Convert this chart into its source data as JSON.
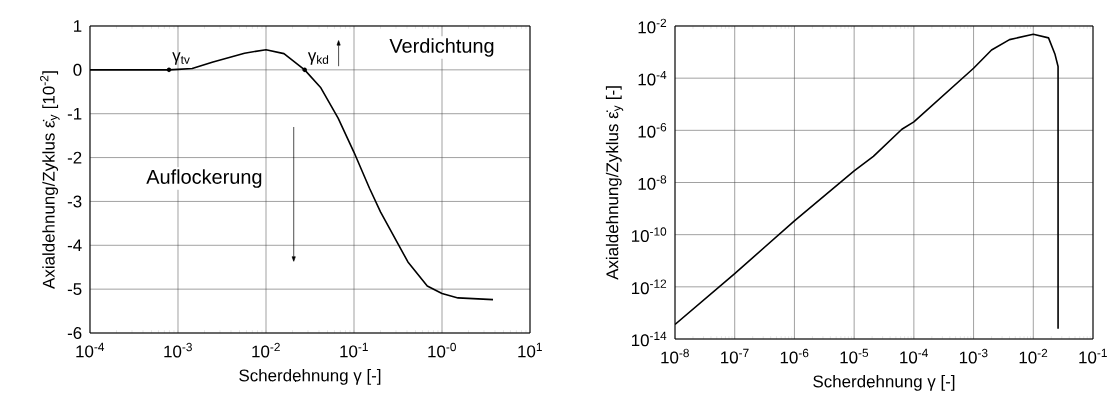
{
  "chart_data": [
    {
      "type": "line",
      "log": "x",
      "grid": true,
      "xlabel": "Scherdehnung γ [-]",
      "ylabel": "Axialdehnung/Zyklus ε̇$_{y}$ [10$^{-2}$]",
      "xlim": [
        0.0001,
        10
      ],
      "ylim": [
        -6,
        1
      ],
      "xticks": [
        {
          "value": 0.0001,
          "label": "10$^{-4}$"
        },
        {
          "value": 0.001,
          "label": "10$^{-3}$"
        },
        {
          "value": 0.01,
          "label": "10$^{-2}$"
        },
        {
          "value": 0.1,
          "label": "10$^{-1}$"
        },
        {
          "value": 1,
          "label": "10$^{-0}$"
        },
        {
          "value": 10,
          "label": "10$^{1}$"
        }
      ],
      "yticks": [
        -6,
        -5,
        -4,
        -3,
        -2,
        -1,
        0,
        1
      ],
      "x": [
        0.0001,
        0.00079,
        0.001,
        0.00145,
        0.0025,
        0.0057,
        0.01,
        0.016,
        0.0275,
        0.042,
        0.066,
        0.1,
        0.15,
        0.2,
        0.41,
        0.68,
        1,
        1.52,
        3.8
      ],
      "series": [
        {
          "color": "#000000",
          "values": [
            0,
            0,
            0.01,
            0.03,
            0.18,
            0.38,
            0.46,
            0.37,
            0,
            -0.41,
            -1.1,
            -1.88,
            -2.7,
            -3.24,
            -4.38,
            -4.93,
            -5.1,
            -5.2,
            -5.24
          ]
        }
      ],
      "annotations": [
        {
          "text": "γ$_{tv}$",
          "x": 0.00079,
          "y": 0
        },
        {
          "text": "γ$_{kd}$",
          "x": 0.0275,
          "y": 0
        },
        "Verdichtung",
        "Auflockerung"
      ]
    },
    {
      "type": "line",
      "log": "xy",
      "grid": true,
      "xlabel": "Scherdehnung γ [-]",
      "ylabel": "Axialdehnung/Zyklus ε̇$_{y}$ [-]",
      "xlim": [
        1e-08,
        0.1
      ],
      "ylim": [
        1e-14,
        0.01
      ],
      "xticks": [
        {
          "value": 1e-08,
          "label": "10$^{-8}$"
        },
        {
          "value": 1e-07,
          "label": "10$^{-7}$"
        },
        {
          "value": 1e-06,
          "label": "10$^{-6}$"
        },
        {
          "value": 1e-05,
          "label": "10$^{-5}$"
        },
        {
          "value": 0.0001,
          "label": "10$^{-4}$"
        },
        {
          "value": 0.001,
          "label": "10$^{-3}$"
        },
        {
          "value": 0.01,
          "label": "10$^{-2}$"
        },
        {
          "value": 0.1,
          "label": "10$^{-1}$"
        }
      ],
      "yticks": [
        {
          "value": 1e-14,
          "label": "10$^{-14}$"
        },
        {
          "value": 1e-12,
          "label": "10$^{-12}$"
        },
        {
          "value": 1e-10,
          "label": "10$^{-10}$"
        },
        {
          "value": 1e-08,
          "label": "10$^{-8}$"
        },
        {
          "value": 1e-06,
          "label": "10$^{-6}$"
        },
        {
          "value": 0.0001,
          "label": "10$^{-4}$"
        },
        {
          "value": 0.01,
          "label": "10$^{-2}$"
        }
      ],
      "x": [
        1e-08,
        1e-07,
        1e-06,
        1e-05,
        2.1e-05,
        6.3e-05,
        0.0001,
        0.001,
        0.002,
        0.004,
        0.01,
        0.018,
        0.023,
        0.026,
        0.026
      ],
      "series": [
        {
          "color": "#000000",
          "values": [
            3.6e-14,
            3.2e-12,
            3.4e-10,
            2.8e-08,
            1e-07,
            1.1e-06,
            2.1e-06,
            0.00024,
            0.0012,
            0.003,
            0.0048,
            0.0035,
            0.00085,
            0.00028,
            2.5e-14
          ]
        }
      ]
    }
  ]
}
